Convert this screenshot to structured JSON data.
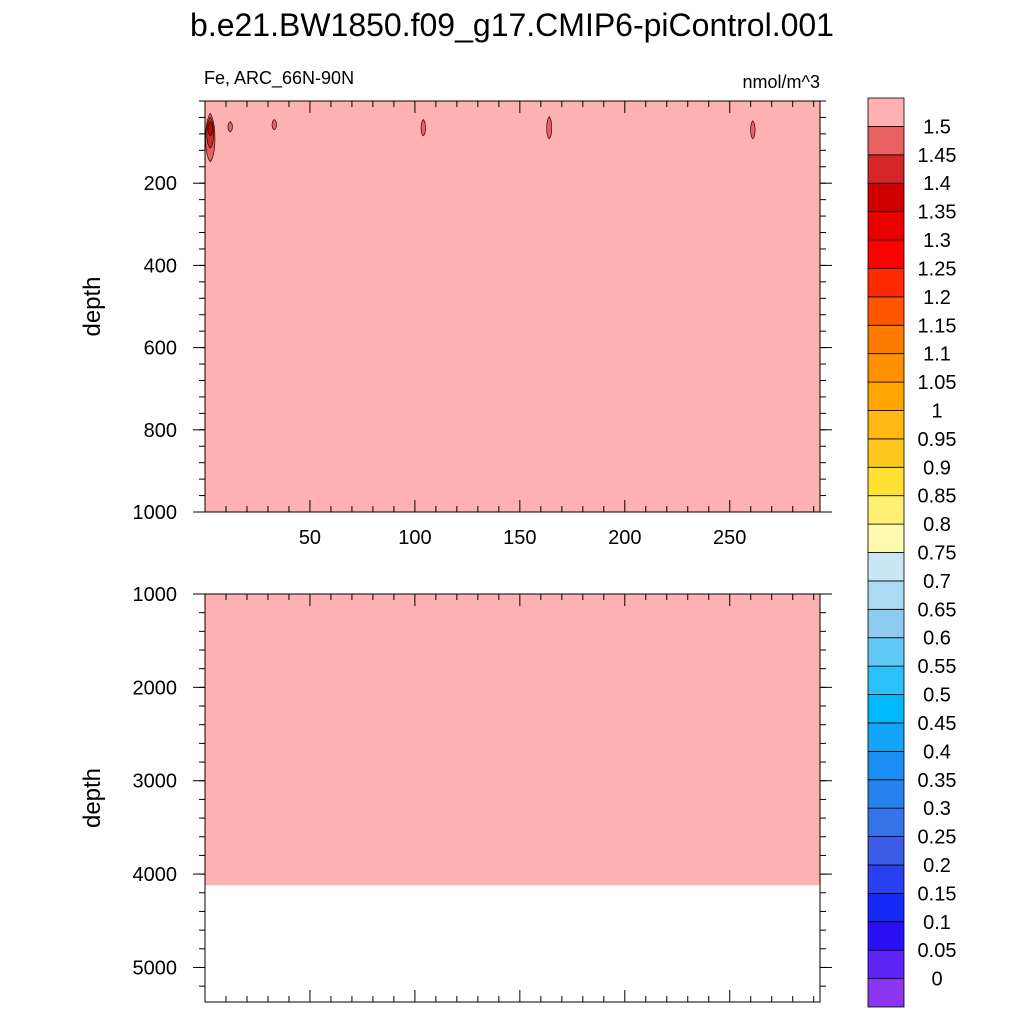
{
  "chart_data": {
    "type": "heatmap",
    "title": "b.e21.BW1850.f09_g17.CMIP6-piControl.001",
    "left_subtitle": "Fe, ARC_66N-90N",
    "right_subtitle": "nmol/m^3",
    "panels": [
      {
        "ylabel": "depth",
        "xlim": [
          0,
          293
        ],
        "ylim": [
          1000,
          0
        ],
        "x_ticks": [
          50,
          100,
          150,
          200,
          250
        ],
        "y_ticks": [
          200,
          400,
          600,
          800,
          1000
        ],
        "background_level": ">1.5",
        "features": [
          {
            "x": 2.5,
            "y_top": 30,
            "y_bottom": 148,
            "halfwidth": 3,
            "level": "1.45-1.5"
          },
          {
            "x": 2.5,
            "y_top": 40,
            "y_bottom": 115,
            "halfwidth": 2.2,
            "level": "1.4-1.45"
          },
          {
            "x": 2.5,
            "y_top": 50,
            "y_bottom": 85,
            "halfwidth": 1.3,
            "level": "1.35-1.4"
          },
          {
            "x": 12,
            "y_top": 50,
            "y_bottom": 75,
            "halfwidth": 1.0,
            "level": "1.45-1.5"
          },
          {
            "x": 33,
            "y_top": 45,
            "y_bottom": 70,
            "halfwidth": 1.3,
            "level": "1.45-1.5"
          },
          {
            "x": 104,
            "y_top": 45,
            "y_bottom": 85,
            "halfwidth": 1.3,
            "level": "1.45-1.5"
          },
          {
            "x": 164,
            "y_top": 38,
            "y_bottom": 92,
            "halfwidth": 1.6,
            "level": "1.45-1.5"
          },
          {
            "x": 261,
            "y_top": 48,
            "y_bottom": 92,
            "halfwidth": 1.3,
            "level": "1.45-1.5"
          }
        ]
      },
      {
        "ylabel": "depth",
        "xlim": [
          0,
          293
        ],
        "ylim": [
          5370,
          1000
        ],
        "x_ticks": [
          50,
          100,
          150,
          200,
          250
        ],
        "y_ticks": [
          1000,
          2000,
          3000,
          4000,
          5000
        ],
        "background_level": ">1.5",
        "fill_bottom_depth": 4120
      }
    ],
    "colorbar": {
      "labels": [
        "0",
        "0.05",
        "0.1",
        "0.15",
        "0.2",
        "0.25",
        "0.3",
        "0.35",
        "0.4",
        "0.45",
        "0.5",
        "0.55",
        "0.6",
        "0.65",
        "0.7",
        "0.75",
        "0.8",
        "0.85",
        "0.9",
        "0.95",
        "1",
        "1.05",
        "1.1",
        "1.15",
        "1.2",
        "1.25",
        "1.3",
        "1.35",
        "1.4",
        "1.45",
        "1.5"
      ],
      "colors": [
        "#8b35f0",
        "#5e22f5",
        "#2a10f5",
        "#1428f6",
        "#2a3ff0",
        "#3a5ce8",
        "#3574e8",
        "#2582ee",
        "#1c8ff5",
        "#14a5f8",
        "#00b8fa",
        "#2cc1f8",
        "#5fc8f4",
        "#8fcbee",
        "#abdaf2",
        "#c8e6f5",
        "#fff9b0",
        "#fff073",
        "#ffe033",
        "#ffc81f",
        "#ffb812",
        "#ffa500",
        "#ff9000",
        "#ff7a00",
        "#ff5500",
        "#ff2b00",
        "#ff0000",
        "#e80000",
        "#d00000",
        "#d42626",
        "#e86060",
        "#ffb0b0"
      ]
    }
  }
}
